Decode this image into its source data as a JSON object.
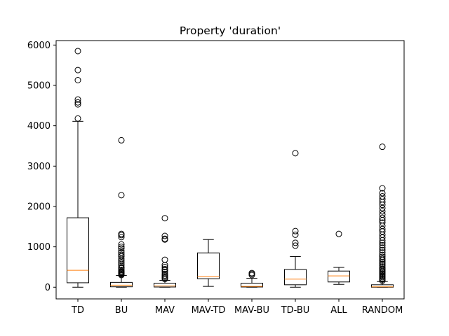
{
  "chart_data": {
    "type": "box",
    "title": "Property 'duration'",
    "xlabel": "",
    "ylabel": "",
    "ylim": [
      -290,
      6110
    ],
    "yticks": [
      0,
      1000,
      2000,
      3000,
      4000,
      5000,
      6000
    ],
    "ytick_labels": [
      "0",
      "1000",
      "2000",
      "3000",
      "4000",
      "5000",
      "6000"
    ],
    "categories": [
      "TD",
      "BU",
      "MAV",
      "MAV-TD",
      "MAV-BU",
      "TD-BU",
      "ALL",
      "RANDOM"
    ],
    "series": [
      {
        "category": "TD",
        "whisker_low": 0,
        "q1": 110,
        "median": 420,
        "q3": 1720,
        "whisker_high": 4110,
        "outliers": [
          4180,
          4530,
          4580,
          4650,
          5130,
          5380,
          5850
        ]
      },
      {
        "category": "BU",
        "whisker_low": 0,
        "q1": 10,
        "median": 50,
        "q3": 120,
        "whisker_high": 290,
        "outliers": [
          300,
          320,
          340,
          360,
          380,
          400,
          430,
          470,
          500,
          550,
          600,
          650,
          700,
          760,
          800,
          850,
          900,
          960,
          1000,
          1060,
          1240,
          1290,
          1320,
          2280,
          3640
        ]
      },
      {
        "category": "MAV",
        "whisker_low": 0,
        "q1": 5,
        "median": 30,
        "q3": 100,
        "whisker_high": 170,
        "outliers": [
          200,
          230,
          260,
          290,
          330,
          380,
          420,
          450,
          500,
          550,
          680,
          1180,
          1200,
          1270,
          1710
        ]
      },
      {
        "category": "MAV-TD",
        "whisker_low": 20,
        "q1": 210,
        "median": 260,
        "q3": 850,
        "whisker_high": 1180,
        "outliers": []
      },
      {
        "category": "MAV-BU",
        "whisker_low": 0,
        "q1": 5,
        "median": 20,
        "q3": 100,
        "whisker_high": 220,
        "outliers": [
          300,
          330,
          350
        ]
      },
      {
        "category": "TD-BU",
        "whisker_low": 0,
        "q1": 60,
        "median": 200,
        "q3": 440,
        "whisker_high": 760,
        "outliers": [
          1030,
          1100,
          1300,
          1390,
          3320
        ]
      },
      {
        "category": "ALL",
        "whisker_low": 70,
        "q1": 130,
        "median": 280,
        "q3": 400,
        "whisker_high": 490,
        "outliers": [
          1320
        ]
      },
      {
        "category": "RANDOM",
        "whisker_low": 0,
        "q1": 0,
        "median": 10,
        "q3": 60,
        "whisker_high": 140,
        "outliers": [
          160,
          190,
          220,
          250,
          280,
          310,
          340,
          370,
          400,
          430,
          460,
          500,
          540,
          580,
          620,
          660,
          700,
          750,
          800,
          860,
          920,
          980,
          1040,
          1100,
          1160,
          1230,
          1300,
          1380,
          1440,
          1520,
          1600,
          1660,
          1720,
          1800,
          1880,
          1960,
          2040,
          2110,
          2180,
          2250,
          2330,
          2450,
          3480
        ]
      }
    ],
    "colors": {
      "box": "#000000",
      "median": "#ff7f0e",
      "outlier_edge": "#000000",
      "background": "#ffffff"
    },
    "grid": false,
    "legend": "none"
  }
}
